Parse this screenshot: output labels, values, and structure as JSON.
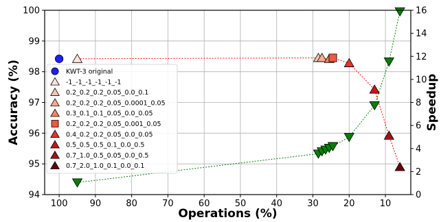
{
  "chart_data": {
    "type": "scatter",
    "title": "",
    "xlabel": "Operations (%)",
    "ylabel": "Accuracy (%)",
    "y2label": "Speedup",
    "xlim": [
      104,
      3
    ],
    "x_reversed": true,
    "ylim": [
      94,
      100
    ],
    "y2lim": [
      0,
      16
    ],
    "xticks": [
      100,
      90,
      80,
      70,
      60,
      50,
      40,
      30,
      20,
      10
    ],
    "yticks": [
      94,
      95,
      96,
      97,
      98,
      99,
      100
    ],
    "y2ticks": [
      0,
      2,
      4,
      6,
      8,
      10,
      12,
      14,
      16
    ],
    "grid": true,
    "legend_position": "left",
    "series": [
      {
        "name": "KWT-3 original",
        "marker": "circle",
        "color": "#1f1fff",
        "points": [
          {
            "x": 100,
            "y": 98.42
          }
        ]
      },
      {
        "name": "-1_-1_-1_-1_-1_-1",
        "marker": "triangle-up",
        "color": "#fde6da",
        "points": [
          {
            "x": 95,
            "y": 98.42
          }
        ]
      },
      {
        "name": "0.2_0.2_0.2_0.05_0.0_0.1",
        "marker": "triangle-up",
        "color": "#fcc5ac",
        "points": [
          {
            "x": 28.5,
            "y": 98.45
          }
        ]
      },
      {
        "name": "0.2_0.2_0.2_0.05_0.0001_0.05",
        "marker": "triangle-up",
        "color": "#fcab8f",
        "points": [
          {
            "x": 27.5,
            "y": 98.45
          }
        ]
      },
      {
        "name": "0.3_0.1_0.1_0.05_0.0_0.05",
        "marker": "triangle-up",
        "color": "#f4845f",
        "points": [
          {
            "x": 25.5,
            "y": 98.42
          }
        ]
      },
      {
        "name": "0.2_0.2_0.2_0.05_0.001_0.05",
        "marker": "square",
        "color": "#f0583f",
        "points": [
          {
            "x": 24.5,
            "y": 98.45
          }
        ]
      },
      {
        "name": "0.4_0.2_0.2_0.05_0.0_0.05",
        "marker": "triangle-up",
        "color": "#e53528",
        "points": [
          {
            "x": 20,
            "y": 98.28
          }
        ]
      },
      {
        "name": "0.5_0.5_0.5_0.1_0.0_0.5",
        "marker": "triangle-up",
        "color": "#c8151c",
        "points": [
          {
            "x": 13,
            "y": 97.42
          }
        ]
      },
      {
        "name": "0.7_1.0_0.5_0.05_0.0_0.5",
        "marker": "triangle-up",
        "color": "#a50f15",
        "points": [
          {
            "x": 9,
            "y": 95.92
          }
        ]
      },
      {
        "name": "0.7_2.0_1.0_0.1_0.0_0.1",
        "marker": "triangle-up",
        "color": "#67000d",
        "points": [
          {
            "x": 6,
            "y": 94.9
          }
        ]
      }
    ],
    "accuracy_line": {
      "color": "#ff0000",
      "x": [
        95,
        28.5,
        27.5,
        25.5,
        24.5,
        20,
        13,
        9,
        6
      ],
      "y": [
        98.42,
        98.45,
        98.45,
        98.42,
        98.45,
        98.28,
        97.42,
        95.92,
        94.9
      ]
    },
    "speedup_series": {
      "color": "#008000",
      "marker": "triangle-down",
      "axis": "right",
      "x": [
        95,
        28.5,
        27.5,
        26.5,
        25.5,
        24.5,
        20,
        13,
        9,
        6
      ],
      "y": [
        1.05,
        3.55,
        3.75,
        3.9,
        4.05,
        4.2,
        5.0,
        7.75,
        11.55,
        15.9
      ]
    }
  }
}
